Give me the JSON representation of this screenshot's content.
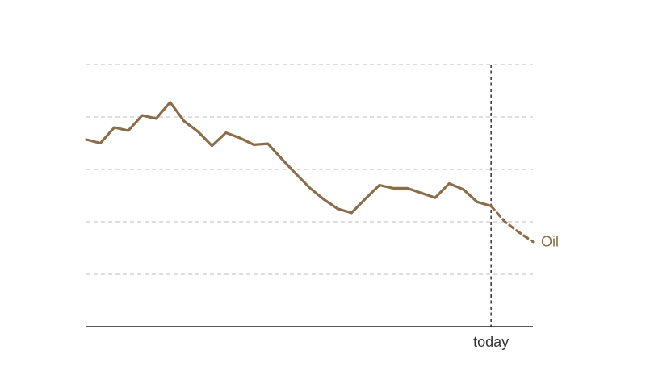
{
  "chart_data": {
    "type": "line",
    "title": "",
    "xlabel": "",
    "ylabel": "",
    "grid": true,
    "gridlines_y": [
      1,
      2,
      3,
      4,
      5
    ],
    "ylim": [
      0,
      5
    ],
    "xlim": [
      0,
      32
    ],
    "x_today": 29,
    "today_label": "today",
    "series": [
      {
        "name": "Oil",
        "color": "#8a6d4b",
        "x": [
          0,
          1,
          2,
          3,
          4,
          5,
          6,
          7,
          8,
          9,
          10,
          11,
          12,
          13,
          14,
          15,
          16,
          17,
          18,
          19,
          20,
          21,
          22,
          23,
          24,
          25,
          26,
          27,
          28,
          29,
          30,
          31,
          32
        ],
        "y": [
          3.57,
          3.5,
          3.8,
          3.74,
          4.03,
          3.97,
          4.28,
          3.92,
          3.72,
          3.45,
          3.7,
          3.6,
          3.47,
          3.49,
          3.2,
          2.92,
          2.65,
          2.43,
          2.25,
          2.17,
          2.44,
          2.7,
          2.64,
          2.64,
          2.55,
          2.46,
          2.73,
          2.62,
          2.38,
          2.3,
          2.0,
          1.8,
          1.62
        ],
        "projected_from_x": 29
      }
    ]
  }
}
